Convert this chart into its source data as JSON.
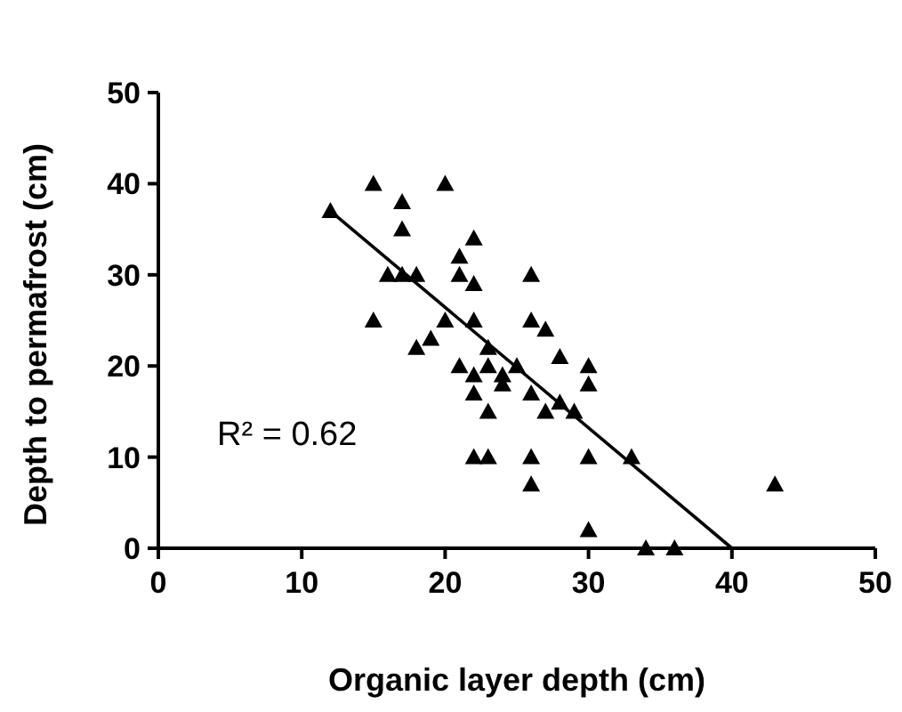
{
  "chart_data": {
    "type": "scatter",
    "xlabel": "Organic layer depth (cm)",
    "ylabel": "Depth to permafrost (cm)",
    "xlim": [
      0,
      50
    ],
    "xticks": [
      0,
      10,
      20,
      30,
      40,
      50
    ],
    "ylim": [
      0,
      50
    ],
    "yticks": [
      0,
      10,
      20,
      30,
      40,
      50
    ],
    "grid": false,
    "marker": "triangle",
    "annotations": [
      "R² = 0.62"
    ],
    "series": [
      {
        "color": "#000000",
        "x": [
          12,
          15,
          20,
          17,
          17,
          22,
          21,
          16,
          17,
          18,
          21,
          22,
          26,
          15,
          20,
          22,
          26,
          27,
          19,
          18,
          23,
          21,
          23,
          25,
          22,
          24,
          24,
          22,
          26,
          23,
          27,
          22,
          23,
          26,
          26,
          28,
          30,
          30,
          28,
          29,
          30,
          33,
          43,
          30,
          34,
          36
        ],
        "values": [
          37,
          40,
          40,
          38,
          35,
          34,
          32,
          30,
          30,
          30,
          30,
          29,
          30,
          25,
          25,
          25,
          25,
          24,
          23,
          22,
          22,
          20,
          20,
          20,
          19,
          19,
          18,
          17,
          17,
          15,
          15,
          10,
          10,
          10,
          7,
          21,
          20,
          18,
          16,
          15,
          10,
          10,
          7,
          2,
          0,
          0
        ]
      },
      {
        "type": "line",
        "color": "#000000",
        "marker": "none",
        "x": [
          12,
          40
        ],
        "values": [
          37,
          0
        ]
      }
    ]
  }
}
